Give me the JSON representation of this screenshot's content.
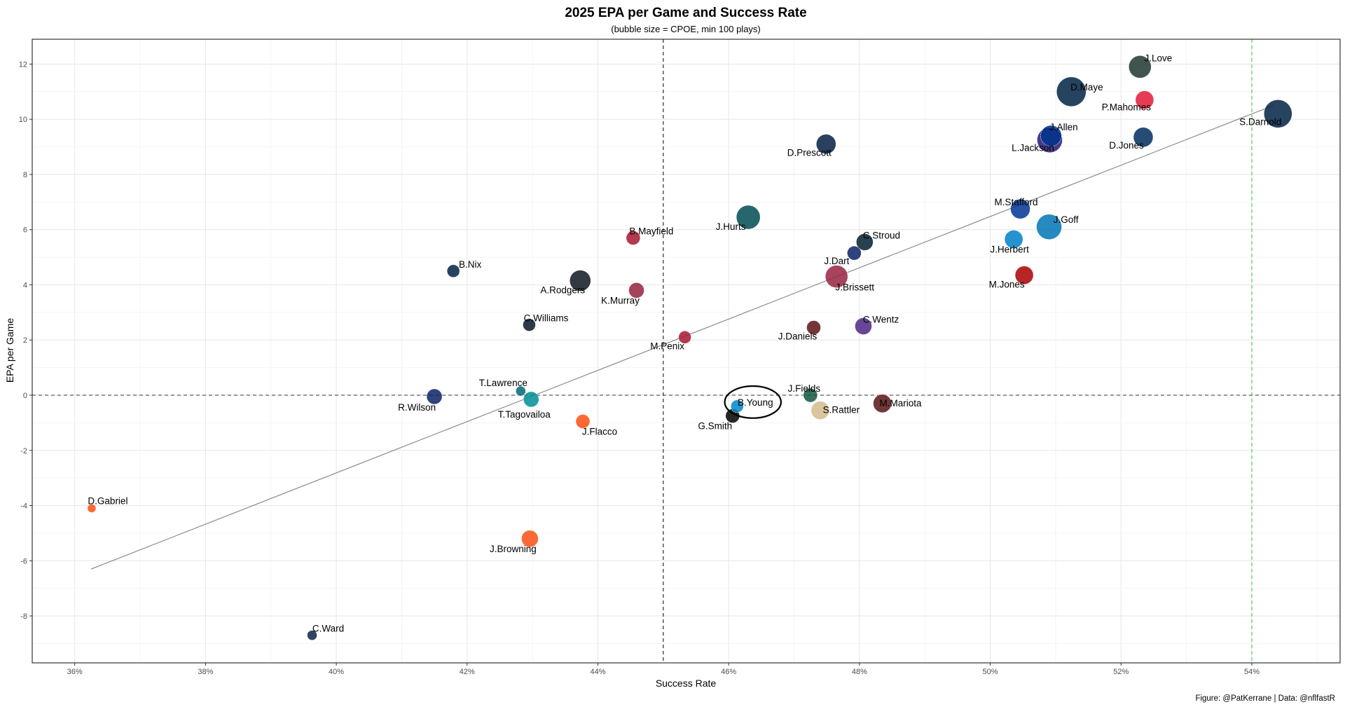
{
  "chart_data": {
    "type": "scatter",
    "title": "2025 EPA per Game and Success Rate",
    "subtitle": "(bubble size = CPOE, min 100 plays)",
    "xlabel": "Success Rate",
    "ylabel": "EPA per Game",
    "caption": "Figure: @PatKerrane | Data: @nflfastR",
    "xlim": [
      0.3535,
      0.5535
    ],
    "ylim": [
      -9.7,
      12.9
    ],
    "x_ticks": [
      0.36,
      0.38,
      0.4,
      0.42,
      0.44,
      0.46,
      0.48,
      0.5,
      0.52,
      0.54
    ],
    "x_tick_labels": [
      "36%",
      "38%",
      "40%",
      "42%",
      "44%",
      "46%",
      "48%",
      "50%",
      "52%",
      "54%"
    ],
    "y_ticks": [
      -8,
      -6,
      -4,
      -2,
      0,
      2,
      4,
      6,
      8,
      10,
      12
    ],
    "y_tick_labels": [
      "-8",
      "-6",
      "-4",
      "-2",
      "0",
      "2",
      "4",
      "6",
      "8",
      "10",
      "12"
    ],
    "grid": true,
    "reference_lines": {
      "vertical_mean": 0.45,
      "horizontal_zero": 0,
      "vertical_green": 0.54
    },
    "trend_line": {
      "x": [
        0.3625,
        0.5433
      ],
      "y": [
        -6.3,
        10.5
      ]
    },
    "highlight": {
      "player": "B.Young",
      "x": 0.4637,
      "y": -0.25,
      "rx": 0.0043,
      "ry": 0.58
    },
    "points": [
      {
        "player": "J.Love",
        "x": 0.5229,
        "y": 11.9,
        "size": 16,
        "color": "#203731"
      },
      {
        "player": "D.Maye",
        "x": 0.5124,
        "y": 11.0,
        "size": 21,
        "color": "#002244"
      },
      {
        "player": "P.Mahomes",
        "x": 0.5236,
        "y": 10.7,
        "size": 13,
        "color": "#E31837"
      },
      {
        "player": "S.Darnold",
        "x": 0.544,
        "y": 10.2,
        "size": 20,
        "color": "#002244"
      },
      {
        "player": "J.Allen",
        "x": 0.5093,
        "y": 9.4,
        "size": 15,
        "color": "#00338D"
      },
      {
        "player": "L.Jackson",
        "x": 0.5091,
        "y": 9.25,
        "size": 18,
        "color": "#241773"
      },
      {
        "player": "D.Jones",
        "x": 0.5234,
        "y": 9.35,
        "size": 14,
        "color": "#002C5F"
      },
      {
        "player": "D.Prescott",
        "x": 0.4749,
        "y": 9.1,
        "size": 14,
        "color": "#041E42"
      },
      {
        "player": "M.Stafford",
        "x": 0.5046,
        "y": 6.75,
        "size": 14,
        "color": "#003594"
      },
      {
        "player": "J.Goff",
        "x": 0.509,
        "y": 6.1,
        "size": 18,
        "color": "#0076B6"
      },
      {
        "player": "J.Hurts",
        "x": 0.463,
        "y": 6.45,
        "size": 17,
        "color": "#004C54"
      },
      {
        "player": "B.Mayfield",
        "x": 0.4454,
        "y": 5.7,
        "size": 10,
        "color": "#A71930"
      },
      {
        "player": "J.Herbert",
        "x": 0.5036,
        "y": 5.65,
        "size": 13,
        "color": "#0080C6"
      },
      {
        "player": "C.Stroud",
        "x": 0.4808,
        "y": 5.55,
        "size": 12,
        "color": "#03202F"
      },
      {
        "player": "J.Dart",
        "x": 0.4792,
        "y": 5.15,
        "size": 10,
        "color": "#0B2265"
      },
      {
        "player": "B.Nix",
        "x": 0.4179,
        "y": 4.5,
        "size": 9,
        "color": "#002244"
      },
      {
        "player": "J.Brissett",
        "x": 0.4765,
        "y": 4.3,
        "size": 16,
        "color": "#97233F"
      },
      {
        "player": "M.Jones",
        "x": 0.5052,
        "y": 4.35,
        "size": 13,
        "color": "#AA0000"
      },
      {
        "player": "A.Rodgers",
        "x": 0.4373,
        "y": 4.15,
        "size": 15,
        "color": "#101820"
      },
      {
        "player": "K.Murray",
        "x": 0.4459,
        "y": 3.8,
        "size": 11,
        "color": "#97233F"
      },
      {
        "player": "C.Williams",
        "x": 0.4295,
        "y": 2.55,
        "size": 9,
        "color": "#0B162A"
      },
      {
        "player": "C.Wentz",
        "x": 0.4806,
        "y": 2.5,
        "size": 12,
        "color": "#4F2683"
      },
      {
        "player": "J.Daniels",
        "x": 0.473,
        "y": 2.45,
        "size": 10,
        "color": "#5A1414"
      },
      {
        "player": "M.Penix",
        "x": 0.4533,
        "y": 2.1,
        "size": 9,
        "color": "#A71930"
      },
      {
        "player": "R.Wilson",
        "x": 0.415,
        "y": -0.05,
        "size": 11,
        "color": "#0B2265"
      },
      {
        "player": "T.Lawrence",
        "x": 0.4282,
        "y": 0.15,
        "size": 7,
        "color": "#006778"
      },
      {
        "player": "T.Tagovailoa",
        "x": 0.4298,
        "y": -0.15,
        "size": 11,
        "color": "#008E97"
      },
      {
        "player": "J.Fields",
        "x": 0.4725,
        "y": 0.0,
        "size": 10,
        "color": "#125740"
      },
      {
        "player": "B.Young",
        "x": 0.4613,
        "y": -0.4,
        "size": 9,
        "color": "#0085CA"
      },
      {
        "player": "S.Rattler",
        "x": 0.474,
        "y": -0.55,
        "size": 13,
        "color": "#D3BC8D"
      },
      {
        "player": "M.Mariota",
        "x": 0.4835,
        "y": -0.3,
        "size": 13,
        "color": "#5A1414"
      },
      {
        "player": "G.Smith",
        "x": 0.4606,
        "y": -0.75,
        "size": 10,
        "color": "#000000"
      },
      {
        "player": "J.Flacco",
        "x": 0.4377,
        "y": -0.95,
        "size": 10,
        "color": "#FB4F14"
      },
      {
        "player": "D.Gabriel",
        "x": 0.3626,
        "y": -4.1,
        "size": 6,
        "color": "#FB4F14"
      },
      {
        "player": "J.Browning",
        "x": 0.4296,
        "y": -5.2,
        "size": 12,
        "color": "#FB4F14"
      },
      {
        "player": "C.Ward",
        "x": 0.3963,
        "y": -8.7,
        "size": 7,
        "color": "#0C2340"
      }
    ]
  }
}
